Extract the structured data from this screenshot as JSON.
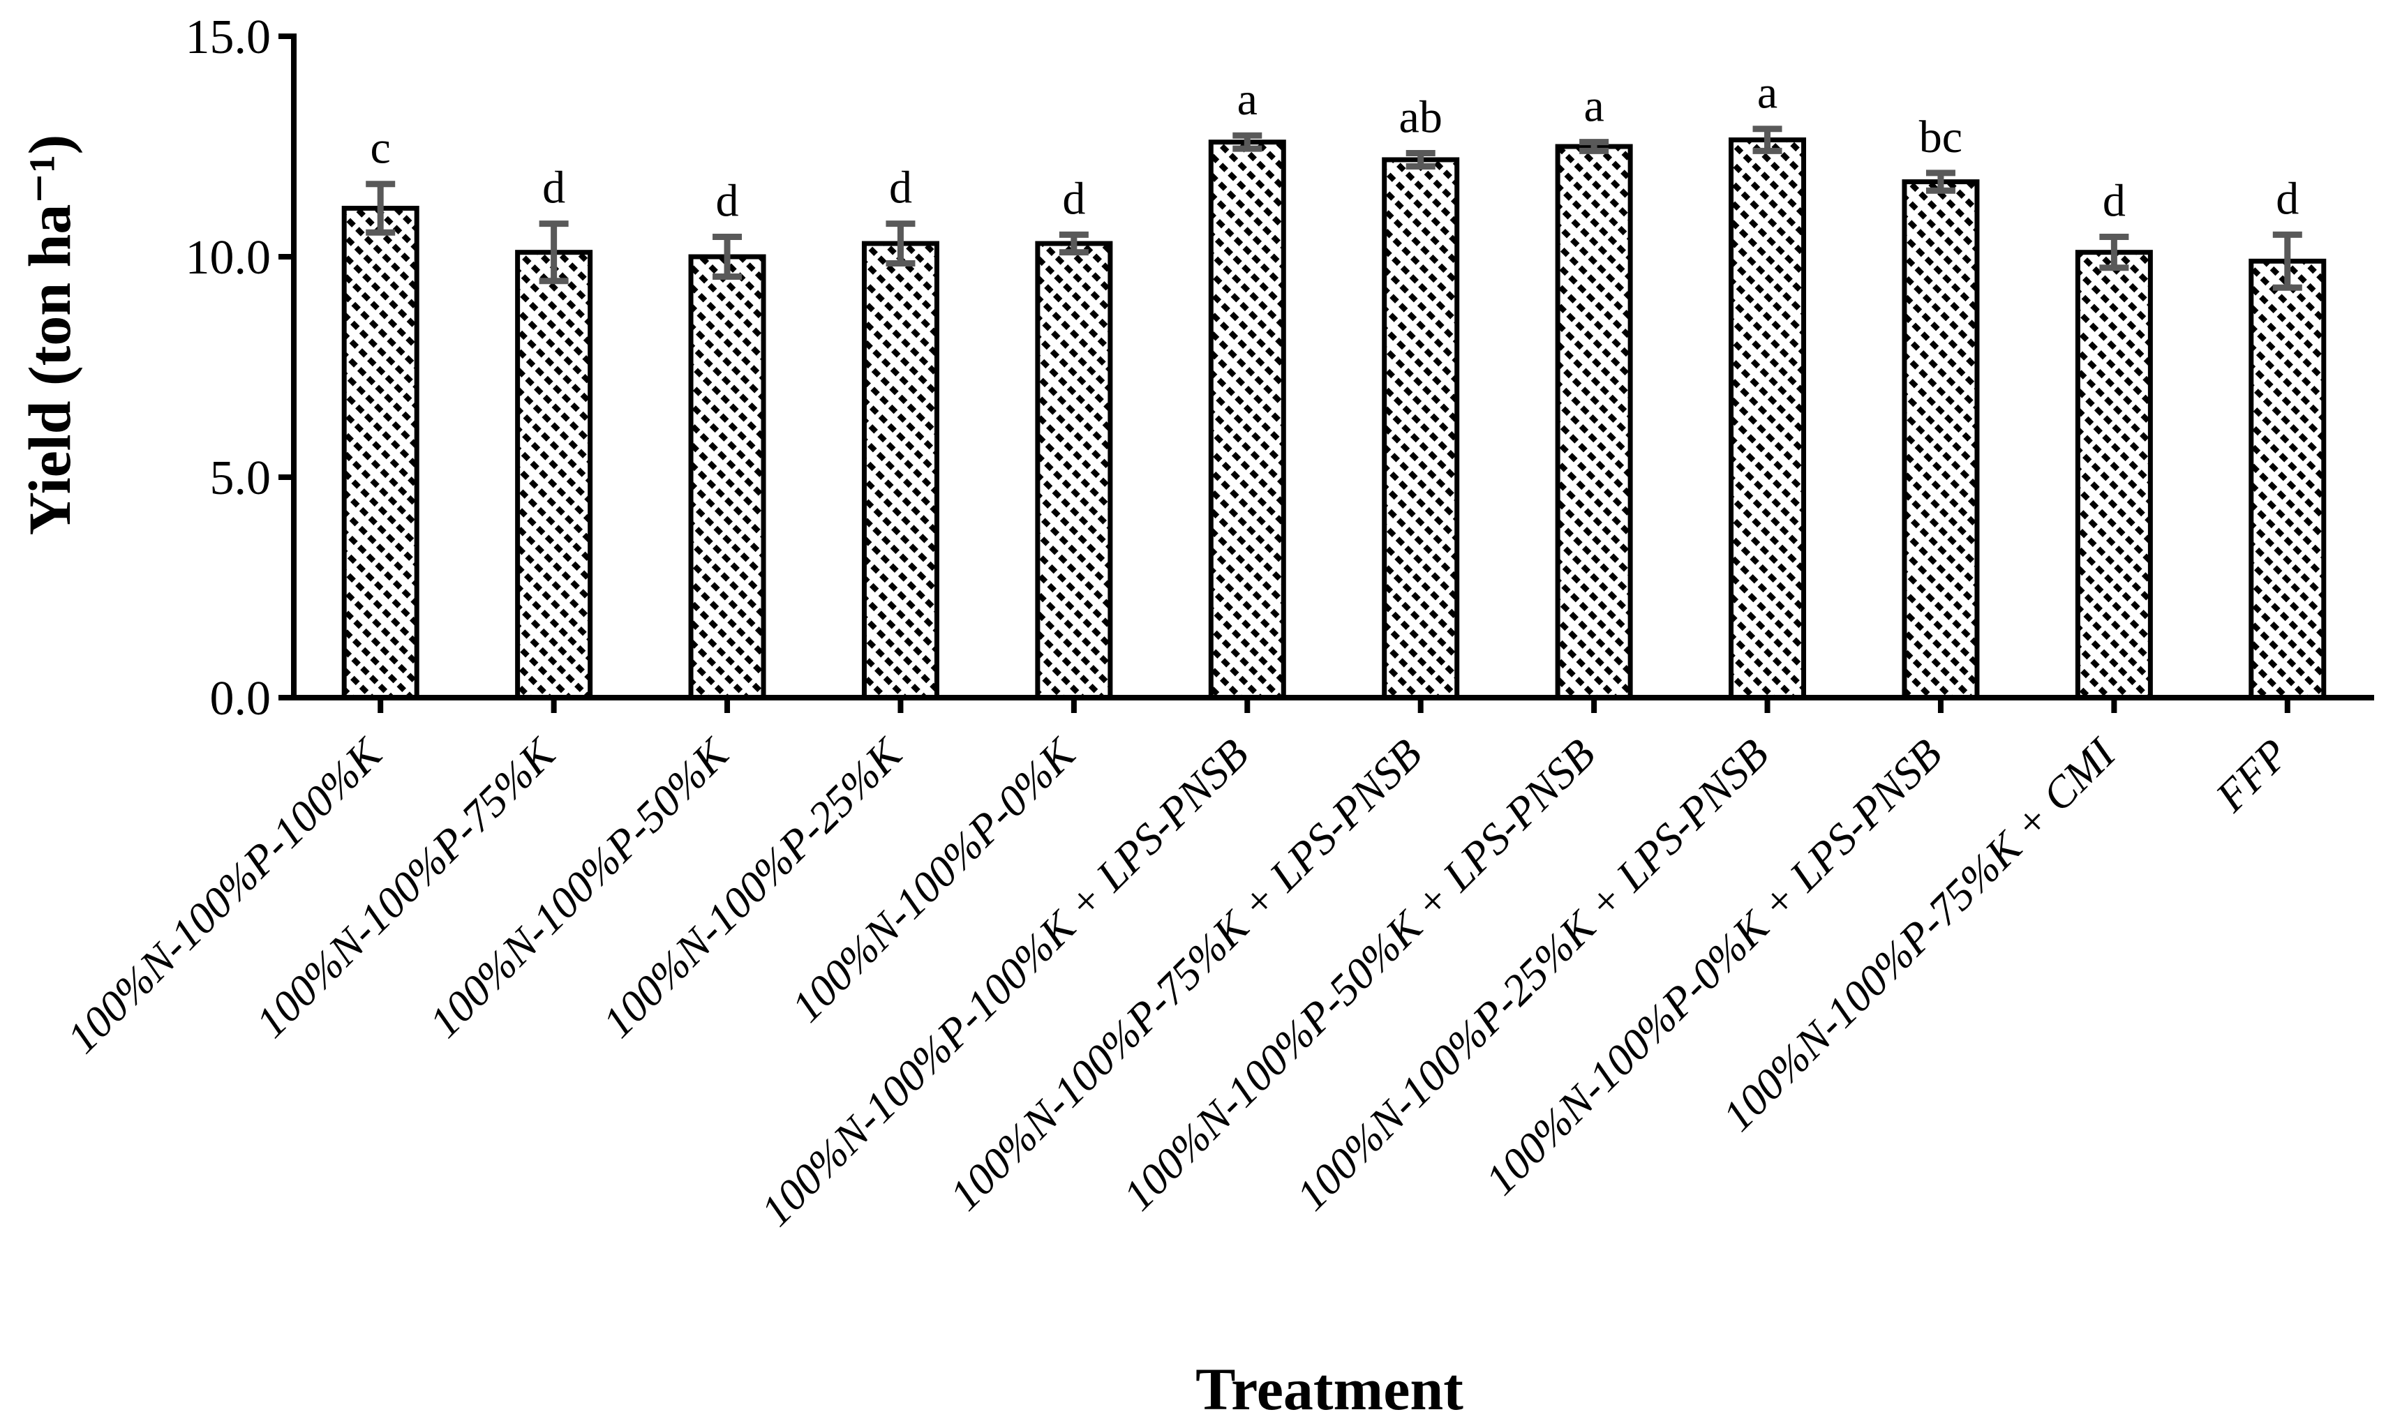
{
  "figure": {
    "x_axis_title": "Treatment",
    "y_axis_title": "Yield (ton ha⁻¹)"
  },
  "chart_data": {
    "type": "bar",
    "title": "",
    "xlabel": "Treatment",
    "ylabel": "Yield (ton ha⁻¹)",
    "ylim": [
      0,
      15
    ],
    "grid": false,
    "legend_position": "none",
    "bar_style": {
      "fill": "#ffffff",
      "hatch": "diagonal-up-dashed",
      "stroke": "#000000"
    },
    "error_bar_color": "#595959",
    "axis_color": "#000000",
    "yticks": [
      {
        "value": 0,
        "label": "0.0"
      },
      {
        "value": 5,
        "label": "5.0"
      },
      {
        "value": 10,
        "label": "10.0"
      },
      {
        "value": 15,
        "label": "15.0"
      }
    ],
    "categories": [
      "100%N-100%P-100%K",
      "100%N-100%P-75%K",
      "100%N-100%P-50%K",
      "100%N-100%P-25%K",
      "100%N-100%P-0%K",
      "100%N-100%P-100%K + LPS-PNSB",
      "100%N-100%P-75%K + LPS-PNSB",
      "100%N-100%P-50%K + LPS-PNSB",
      "100%N-100%P-25%K + LPS-PNSB",
      "100%N-100%P-0%K + LPS-PNSB",
      "100%N-100%P-75%K + CMI",
      "FFP"
    ],
    "series": [
      {
        "name": "Yield (ton ha⁻¹)",
        "values": [
          11.1,
          10.1,
          10.0,
          10.3,
          10.3,
          12.6,
          12.2,
          12.5,
          12.65,
          11.7,
          10.1,
          9.9
        ],
        "errors": [
          0.55,
          0.65,
          0.45,
          0.45,
          0.2,
          0.15,
          0.15,
          0.1,
          0.25,
          0.2,
          0.35,
          0.6
        ],
        "sig_letters": [
          "c",
          "d",
          "d",
          "d",
          "d",
          "a",
          "ab",
          "a",
          "a",
          "bc",
          "d",
          "d"
        ]
      }
    ]
  }
}
